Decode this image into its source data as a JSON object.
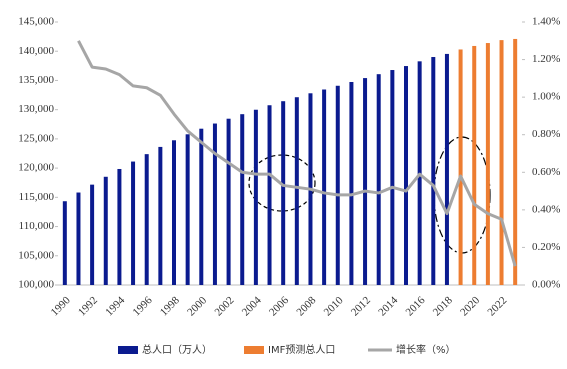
{
  "chart_data": {
    "type": "bar+line",
    "categories": [
      "1990",
      null,
      "1992",
      null,
      "1994",
      null,
      "1996",
      null,
      "1998",
      null,
      "2000",
      null,
      "2002",
      null,
      "2004",
      null,
      "2006",
      null,
      "2008",
      null,
      "2010",
      null,
      "2012",
      null,
      "2014",
      null,
      "2016",
      null,
      "2018",
      null,
      "2020",
      null,
      "2022",
      null
    ],
    "series": [
      {
        "name": "总人口（万人）",
        "type": "bar",
        "color": "#0b1b8f",
        "values": [
          114333,
          115823,
          117171,
          118517,
          119850,
          121121,
          122389,
          123626,
          124761,
          125786,
          126743,
          127627,
          128453,
          129227,
          129988,
          130756,
          131448,
          132129,
          132802,
          133450,
          134091,
          134735,
          135404,
          136072,
          136782,
          137462,
          138271,
          139008,
          139538,
          null,
          null,
          null,
          null,
          null
        ]
      },
      {
        "name": "IMF预测总人口",
        "type": "bar",
        "color": "#ed7d31",
        "values": [
          null,
          null,
          null,
          null,
          null,
          null,
          null,
          null,
          null,
          null,
          null,
          null,
          null,
          null,
          null,
          null,
          null,
          null,
          null,
          null,
          null,
          null,
          null,
          null,
          null,
          null,
          null,
          null,
          null,
          140300,
          140900,
          141400,
          141900,
          142100
        ]
      },
      {
        "name": "增长率（%）",
        "type": "line",
        "axis": "y2",
        "color": "#a6a6a6",
        "values": [
          null,
          1.3,
          1.16,
          1.15,
          1.12,
          1.06,
          1.05,
          1.01,
          0.91,
          0.82,
          0.76,
          0.7,
          0.65,
          0.6,
          0.59,
          0.59,
          0.53,
          0.52,
          0.51,
          0.49,
          0.48,
          0.48,
          0.5,
          0.49,
          0.52,
          0.5,
          0.59,
          0.53,
          0.38,
          0.58,
          0.43,
          0.38,
          0.35,
          0.1
        ]
      }
    ],
    "ylim": [
      100000,
      145000
    ],
    "yticks": [
      {
        "value": 100000,
        "label": "100,000"
      },
      {
        "value": 105000,
        "label": "105,000"
      },
      {
        "value": 110000,
        "label": "110,000"
      },
      {
        "value": 115000,
        "label": "115,000"
      },
      {
        "value": 120000,
        "label": "120,000"
      },
      {
        "value": 125000,
        "label": "125,000"
      },
      {
        "value": 130000,
        "label": "130,000"
      },
      {
        "value": 135000,
        "label": "135,000"
      },
      {
        "value": 140000,
        "label": "140,000"
      },
      {
        "value": 145000,
        "label": "145,000"
      }
    ],
    "y2lim": [
      0,
      1.4
    ],
    "y2ticks": [
      {
        "value": 0,
        "label": "0.00%"
      },
      {
        "value": 0.2,
        "label": "0.20%"
      },
      {
        "value": 0.4,
        "label": "0.40%"
      },
      {
        "value": 0.6,
        "label": "0.60%"
      },
      {
        "value": 0.8,
        "label": "0.80%"
      },
      {
        "value": 1.0,
        "label": "1.00%"
      },
      {
        "value": 1.2,
        "label": "1.20%"
      },
      {
        "value": 1.4,
        "label": "1.40%"
      }
    ],
    "grid": false,
    "legend": "bottom"
  }
}
